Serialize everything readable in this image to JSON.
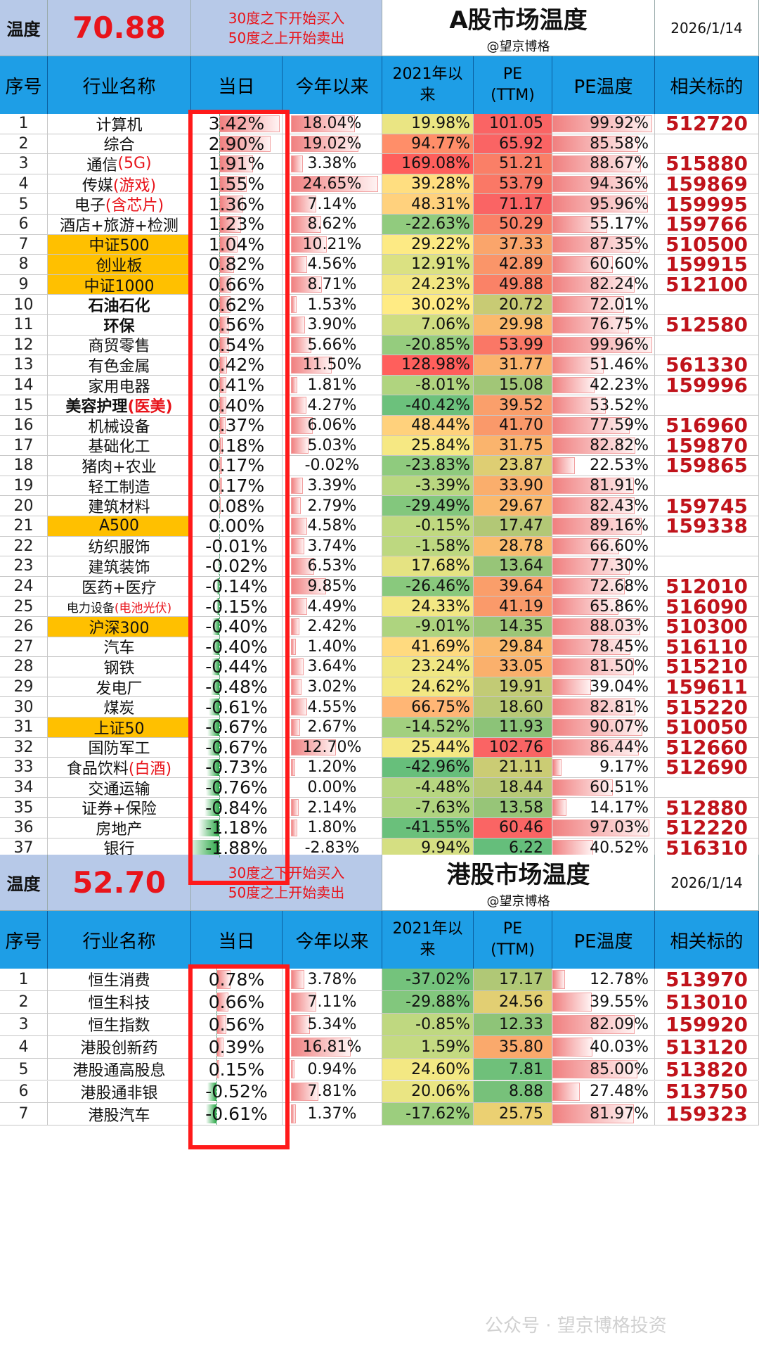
{
  "a_share": {
    "temp_label": "温度",
    "temp_value": "70.88",
    "rule_line1": "30度之下开始买入",
    "rule_line2": "50度之上开始卖出",
    "title": "A股市场温度",
    "author": "@望京博格",
    "date": "2026/1/14",
    "headers": {
      "no": "序号",
      "name": "行业名称",
      "day": "当日",
      "ytd": "今年以来",
      "since_a": "2021年以",
      "since_b": "来",
      "pe_a": "PE",
      "pe_b": "(TTM)",
      "pet": "PE温度",
      "code": "相关标的"
    },
    "rows": [
      {
        "no": "1",
        "name": "计算机",
        "day": "3.42%",
        "ytd": "18.04%",
        "since": "19.98%",
        "pe": "101.05",
        "pet": "99.92%",
        "code": "512720",
        "idx": false,
        "bold": false
      },
      {
        "no": "2",
        "name": "综合",
        "day": "2.90%",
        "ytd": "19.02%",
        "since": "94.77%",
        "pe": "65.92",
        "pet": "85.58%",
        "code": "",
        "idx": false,
        "bold": false
      },
      {
        "no": "3",
        "name": "通信",
        "hl": "(5G)",
        "day": "1.91%",
        "ytd": "3.38%",
        "since": "169.08%",
        "pe": "51.21",
        "pet": "88.67%",
        "code": "515880",
        "idx": false,
        "bold": false
      },
      {
        "no": "4",
        "name": "传媒",
        "hl": "(游戏)",
        "day": "1.55%",
        "ytd": "24.65%",
        "since": "39.28%",
        "pe": "53.79",
        "pet": "94.36%",
        "code": "159869",
        "idx": false,
        "bold": false
      },
      {
        "no": "5",
        "name": "电子",
        "hl": "(含芯片)",
        "day": "1.36%",
        "ytd": "7.14%",
        "since": "48.31%",
        "pe": "71.17",
        "pet": "95.96%",
        "code": "159995",
        "idx": false,
        "bold": false
      },
      {
        "no": "6",
        "name": "酒店+旅游+检测",
        "day": "1.23%",
        "ytd": "8.62%",
        "since": "-22.63%",
        "pe": "50.29",
        "pet": "55.17%",
        "code": "159766",
        "idx": false,
        "bold": false
      },
      {
        "no": "7",
        "name": "中证500",
        "day": "1.04%",
        "ytd": "10.21%",
        "since": "29.22%",
        "pe": "37.33",
        "pet": "87.35%",
        "code": "510500",
        "idx": true,
        "bold": false
      },
      {
        "no": "8",
        "name": "创业板",
        "day": "0.82%",
        "ytd": "4.56%",
        "since": "12.91%",
        "pe": "42.89",
        "pet": "60.60%",
        "code": "159915",
        "idx": true,
        "bold": false
      },
      {
        "no": "9",
        "name": "中证1000",
        "day": "0.66%",
        "ytd": "8.71%",
        "since": "24.23%",
        "pe": "49.88",
        "pet": "82.24%",
        "code": "512100",
        "idx": true,
        "bold": false
      },
      {
        "no": "10",
        "name": "石油石化",
        "day": "0.62%",
        "ytd": "1.53%",
        "since": "30.02%",
        "pe": "20.72",
        "pet": "72.01%",
        "code": "",
        "idx": false,
        "bold": true
      },
      {
        "no": "11",
        "name": "环保",
        "day": "0.56%",
        "ytd": "3.90%",
        "since": "7.06%",
        "pe": "29.98",
        "pet": "76.75%",
        "code": "512580",
        "idx": false,
        "bold": true
      },
      {
        "no": "12",
        "name": "商贸零售",
        "day": "0.54%",
        "ytd": "5.66%",
        "since": "-20.85%",
        "pe": "53.99",
        "pet": "99.96%",
        "code": "",
        "idx": false,
        "bold": false
      },
      {
        "no": "13",
        "name": "有色金属",
        "day": "0.42%",
        "ytd": "11.50%",
        "since": "128.98%",
        "pe": "31.77",
        "pet": "51.46%",
        "code": "561330",
        "idx": false,
        "bold": false
      },
      {
        "no": "14",
        "name": "家用电器",
        "day": "0.41%",
        "ytd": "1.81%",
        "since": "-8.01%",
        "pe": "15.08",
        "pet": "42.23%",
        "code": "159996",
        "idx": false,
        "bold": false
      },
      {
        "no": "15",
        "name": "美容护理",
        "hl": "(医美)",
        "day": "0.40%",
        "ytd": "4.27%",
        "since": "-40.42%",
        "pe": "39.52",
        "pet": "53.52%",
        "code": "",
        "idx": false,
        "bold": true
      },
      {
        "no": "16",
        "name": "机械设备",
        "day": "0.37%",
        "ytd": "6.06%",
        "since": "48.44%",
        "pe": "41.70",
        "pet": "77.59%",
        "code": "516960",
        "idx": false,
        "bold": false
      },
      {
        "no": "17",
        "name": "基础化工",
        "day": "0.18%",
        "ytd": "5.03%",
        "since": "25.84%",
        "pe": "31.75",
        "pet": "82.82%",
        "code": "159870",
        "idx": false,
        "bold": false
      },
      {
        "no": "18",
        "name": "猪肉+农业",
        "day": "0.17%",
        "ytd": "-0.02%",
        "since": "-23.83%",
        "pe": "23.87",
        "pet": "22.53%",
        "code": "159865",
        "idx": false,
        "bold": false
      },
      {
        "no": "19",
        "name": "轻工制造",
        "day": "0.17%",
        "ytd": "3.39%",
        "since": "-3.39%",
        "pe": "33.90",
        "pet": "81.91%",
        "code": "",
        "idx": false,
        "bold": false
      },
      {
        "no": "20",
        "name": "建筑材料",
        "day": "0.08%",
        "ytd": "2.79%",
        "since": "-29.49%",
        "pe": "29.67",
        "pet": "82.43%",
        "code": "159745",
        "idx": false,
        "bold": false
      },
      {
        "no": "21",
        "name": "A500",
        "day": "0.00%",
        "ytd": "4.58%",
        "since": "-0.15%",
        "pe": "17.47",
        "pet": "89.16%",
        "code": "159338",
        "idx": true,
        "bold": false
      },
      {
        "no": "22",
        "name": "纺织服饰",
        "day": "-0.01%",
        "ytd": "3.74%",
        "since": "-1.58%",
        "pe": "28.78",
        "pet": "66.60%",
        "code": "",
        "idx": false,
        "bold": false
      },
      {
        "no": "23",
        "name": "建筑装饰",
        "day": "-0.02%",
        "ytd": "6.53%",
        "since": "17.68%",
        "pe": "13.64",
        "pet": "77.30%",
        "code": "",
        "idx": false,
        "bold": false
      },
      {
        "no": "24",
        "name": "医药+医疗",
        "day": "-0.14%",
        "ytd": "9.85%",
        "since": "-26.46%",
        "pe": "39.64",
        "pet": "72.68%",
        "code": "512010",
        "idx": false,
        "bold": false
      },
      {
        "no": "25",
        "name": "电力设备",
        "hl": "(电池光伏)",
        "day": "-0.15%",
        "ytd": "4.49%",
        "since": "24.33%",
        "pe": "41.19",
        "pet": "65.86%",
        "code": "516090",
        "idx": false,
        "bold": false,
        "small": true
      },
      {
        "no": "26",
        "name": "沪深300",
        "day": "-0.40%",
        "ytd": "2.42%",
        "since": "-9.01%",
        "pe": "14.35",
        "pet": "88.03%",
        "code": "510300",
        "idx": true,
        "bold": false
      },
      {
        "no": "27",
        "name": "汽车",
        "day": "-0.40%",
        "ytd": "1.40%",
        "since": "41.69%",
        "pe": "29.84",
        "pet": "78.45%",
        "code": "516110",
        "idx": false,
        "bold": false
      },
      {
        "no": "28",
        "name": "钢铁",
        "day": "-0.44%",
        "ytd": "3.64%",
        "since": "23.24%",
        "pe": "33.05",
        "pet": "81.50%",
        "code": "515210",
        "idx": false,
        "bold": false
      },
      {
        "no": "29",
        "name": "发电厂",
        "day": "-0.48%",
        "ytd": "3.02%",
        "since": "24.62%",
        "pe": "19.91",
        "pet": "39.04%",
        "code": "159611",
        "idx": false,
        "bold": false
      },
      {
        "no": "30",
        "name": "煤炭",
        "day": "-0.61%",
        "ytd": "4.55%",
        "since": "66.75%",
        "pe": "18.60",
        "pet": "82.81%",
        "code": "515220",
        "idx": false,
        "bold": false
      },
      {
        "no": "31",
        "name": "上证50",
        "day": "-0.67%",
        "ytd": "2.67%",
        "since": "-14.52%",
        "pe": "11.93",
        "pet": "90.07%",
        "code": "510050",
        "idx": true,
        "bold": false
      },
      {
        "no": "32",
        "name": "国防军工",
        "day": "-0.67%",
        "ytd": "12.70%",
        "since": "25.44%",
        "pe": "102.76",
        "pet": "86.44%",
        "code": "512660",
        "idx": false,
        "bold": false
      },
      {
        "no": "33",
        "name": "食品饮料",
        "hl": "(白酒)",
        "day": "-0.73%",
        "ytd": "1.20%",
        "since": "-42.96%",
        "pe": "21.11",
        "pet": "9.17%",
        "code": "512690",
        "idx": false,
        "bold": false
      },
      {
        "no": "34",
        "name": "交通运输",
        "day": "-0.76%",
        "ytd": "0.00%",
        "since": "-4.48%",
        "pe": "18.44",
        "pet": "60.51%",
        "code": "",
        "idx": false,
        "bold": false
      },
      {
        "no": "35",
        "name": "证券+保险",
        "day": "-0.84%",
        "ytd": "2.14%",
        "since": "-7.63%",
        "pe": "13.58",
        "pet": "14.17%",
        "code": "512880",
        "idx": false,
        "bold": false
      },
      {
        "no": "36",
        "name": "房地产",
        "day": "-1.18%",
        "ytd": "1.80%",
        "since": "-41.55%",
        "pe": "60.46",
        "pet": "97.03%",
        "code": "512220",
        "idx": false,
        "bold": false
      },
      {
        "no": "37",
        "name": "银行",
        "day": "-1.88%",
        "ytd": "-2.83%",
        "since": "9.94%",
        "pe": "6.22",
        "pet": "40.52%",
        "code": "516310",
        "idx": false,
        "bold": false
      }
    ]
  },
  "hk_share": {
    "temp_label": "温度",
    "temp_value": "52.70",
    "rule_line1": "30度之下开始买入",
    "rule_line2": "50度之上开始卖出",
    "title": "港股市场温度",
    "author": "@望京博格",
    "date": "2026/1/14",
    "headers": {
      "no": "序号",
      "name": "行业名称",
      "day": "当日",
      "ytd": "今年以来",
      "since_a": "2021年以",
      "since_b": "来",
      "pe_a": "PE",
      "pe_b": "(TTM)",
      "pet": "PE温度",
      "code": "相关标的"
    },
    "rows": [
      {
        "no": "1",
        "name": "恒生消费",
        "day": "0.78%",
        "ytd": "3.78%",
        "since": "-37.02%",
        "pe": "17.17",
        "pet": "12.78%",
        "code": "513970",
        "idx": false,
        "bold": false
      },
      {
        "no": "2",
        "name": "恒生科技",
        "day": "0.66%",
        "ytd": "7.11%",
        "since": "-29.88%",
        "pe": "24.56",
        "pet": "39.55%",
        "code": "513010",
        "idx": false,
        "bold": false
      },
      {
        "no": "3",
        "name": "恒生指数",
        "day": "0.56%",
        "ytd": "5.34%",
        "since": "-0.85%",
        "pe": "12.33",
        "pet": "82.09%",
        "code": "159920",
        "idx": false,
        "bold": false
      },
      {
        "no": "4",
        "name": "港股创新药",
        "day": "0.39%",
        "ytd": "16.81%",
        "since": "1.59%",
        "pe": "35.80",
        "pet": "40.03%",
        "code": "513120",
        "idx": false,
        "bold": false
      },
      {
        "no": "5",
        "name": "港股通高股息",
        "day": "0.15%",
        "ytd": "0.94%",
        "since": "24.60%",
        "pe": "7.81",
        "pet": "85.00%",
        "code": "513820",
        "idx": false,
        "bold": false
      },
      {
        "no": "6",
        "name": "港股通非银",
        "day": "-0.52%",
        "ytd": "7.81%",
        "since": "20.06%",
        "pe": "8.88",
        "pet": "27.48%",
        "code": "513750",
        "idx": false,
        "bold": false
      },
      {
        "no": "7",
        "name": "港股汽车",
        "day": "-0.61%",
        "ytd": "1.37%",
        "since": "-17.62%",
        "pe": "25.75",
        "pet": "81.97%",
        "code": "159323",
        "idx": false,
        "bold": false
      }
    ]
  },
  "watermark": "公众号 · 望京博格投资",
  "colors": {
    "header_blue": "#1e9ee6",
    "temp_bg": "#b7c9e8",
    "accent_red": "#e8141b",
    "index_orange": "#ffc000",
    "box_red": "#ff1a1a"
  }
}
